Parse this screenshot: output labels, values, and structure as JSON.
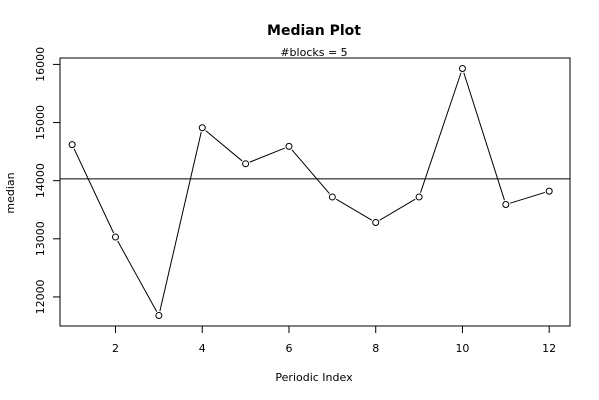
{
  "chart_data": {
    "type": "line",
    "title": "Median Plot",
    "subtitle": "#blocks =  5",
    "xlabel": "Periodic Index",
    "ylabel": "median",
    "x": [
      1,
      2,
      3,
      4,
      5,
      6,
      7,
      8,
      9,
      10,
      11,
      12
    ],
    "series": [
      {
        "values": [
          14620,
          13030,
          11680,
          14910,
          14290,
          14590,
          13720,
          13280,
          13720,
          15930,
          13590,
          13820
        ]
      }
    ],
    "reference_line": 14030,
    "xlim": [
      0.72,
      12.48
    ],
    "ylim": [
      11500,
      16110
    ],
    "x_ticks": [
      2,
      4,
      6,
      8,
      10,
      12
    ],
    "y_ticks": [
      12000,
      13000,
      14000,
      15000,
      16000
    ],
    "grid": false,
    "legend": "none",
    "markers": "open-circle",
    "line_color": "#000000"
  }
}
